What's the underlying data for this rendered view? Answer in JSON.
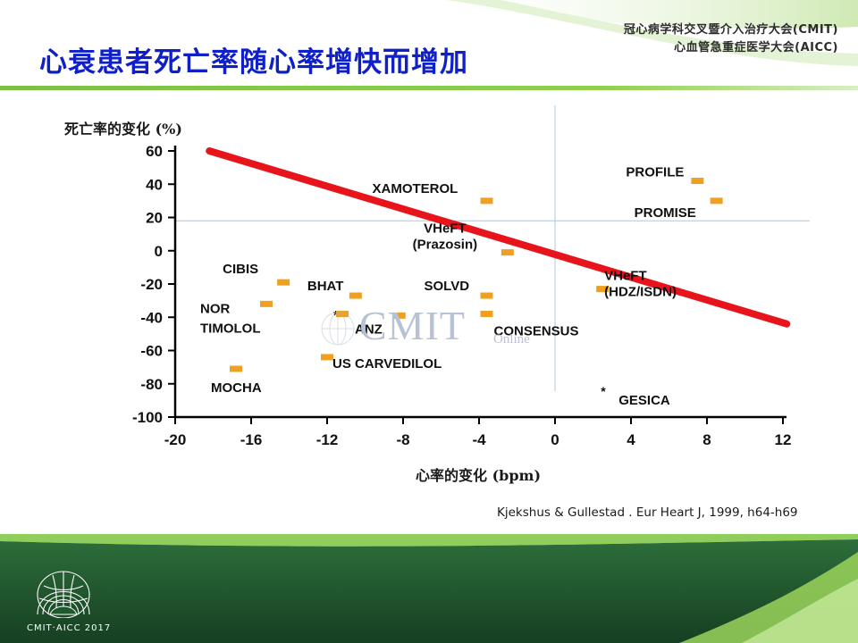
{
  "slide": {
    "conference_line1": "冠心病学科交叉暨介入治疗大会(CMIT)",
    "conference_line2": "心血管急重症医学大会(AICC)",
    "title": "心衰患者死亡率随心率增快而增加",
    "citation": "Kjekshus & Gullestad . Eur Heart J, 1999, h64-h69",
    "footer_logo_text": "CMIT·AICC 2017",
    "watermark_main": "CMIT",
    "watermark_sub": "Online"
  },
  "colors": {
    "title": "#1020c8",
    "accent_green": "#7ac143",
    "dark_green": "#1f5a2e",
    "regression_line": "#e8141c",
    "marker": "#f0a020",
    "guide_line": "#a8c8e4"
  },
  "chart_data": {
    "type": "scatter",
    "title": "",
    "xlabel": "心率的变化 (bpm)",
    "ylabel": "死亡率的变化 (%)",
    "xlim": [
      -20,
      12
    ],
    "ylim": [
      -100,
      60
    ],
    "x_ticks": [
      "-20",
      "-16",
      "-12",
      "-8",
      "-4",
      "0",
      "4",
      "8",
      "12"
    ],
    "y_ticks": [
      "60",
      "40",
      "20",
      "0",
      "-20",
      "-40",
      "-60",
      "-80",
      "-100"
    ],
    "grid": false,
    "reference_lines": {
      "x": 0,
      "y": 18
    },
    "regression_line": {
      "x": [
        -18.2,
        12.2
      ],
      "y": [
        60,
        -44
      ]
    },
    "points": [
      {
        "label": "XAMOTEROL",
        "x": -3.6,
        "y": 30
      },
      {
        "label": "PROFILE",
        "x": 7.5,
        "y": 42
      },
      {
        "label": "PROMISE",
        "x": 8.5,
        "y": 30
      },
      {
        "label": "VHeFT (Prazosin)",
        "x": -2.5,
        "y": -1
      },
      {
        "label": "CIBIS",
        "x": -14.3,
        "y": -19
      },
      {
        "label": "NOR TIMOLOL",
        "x": -15.2,
        "y": -32
      },
      {
        "label": "BHAT",
        "x": -10.5,
        "y": -27
      },
      {
        "label": "ANZ",
        "x": -11.2,
        "y": -38
      },
      {
        "label": "SOLVD",
        "x": -3.6,
        "y": -27
      },
      {
        "label": "CONSENSUS",
        "x": -3.6,
        "y": -38
      },
      {
        "label": "",
        "x": -8.2,
        "y": -39
      },
      {
        "label": "US CARVEDILOL",
        "x": -12.0,
        "y": -64
      },
      {
        "label": "MOCHA",
        "x": -16.8,
        "y": -71
      },
      {
        "label": "VHeFT (HDZ/ISDN)",
        "x": 2.5,
        "y": -23
      },
      {
        "label": "GESICA",
        "x": 2.6,
        "y": -84
      }
    ]
  }
}
